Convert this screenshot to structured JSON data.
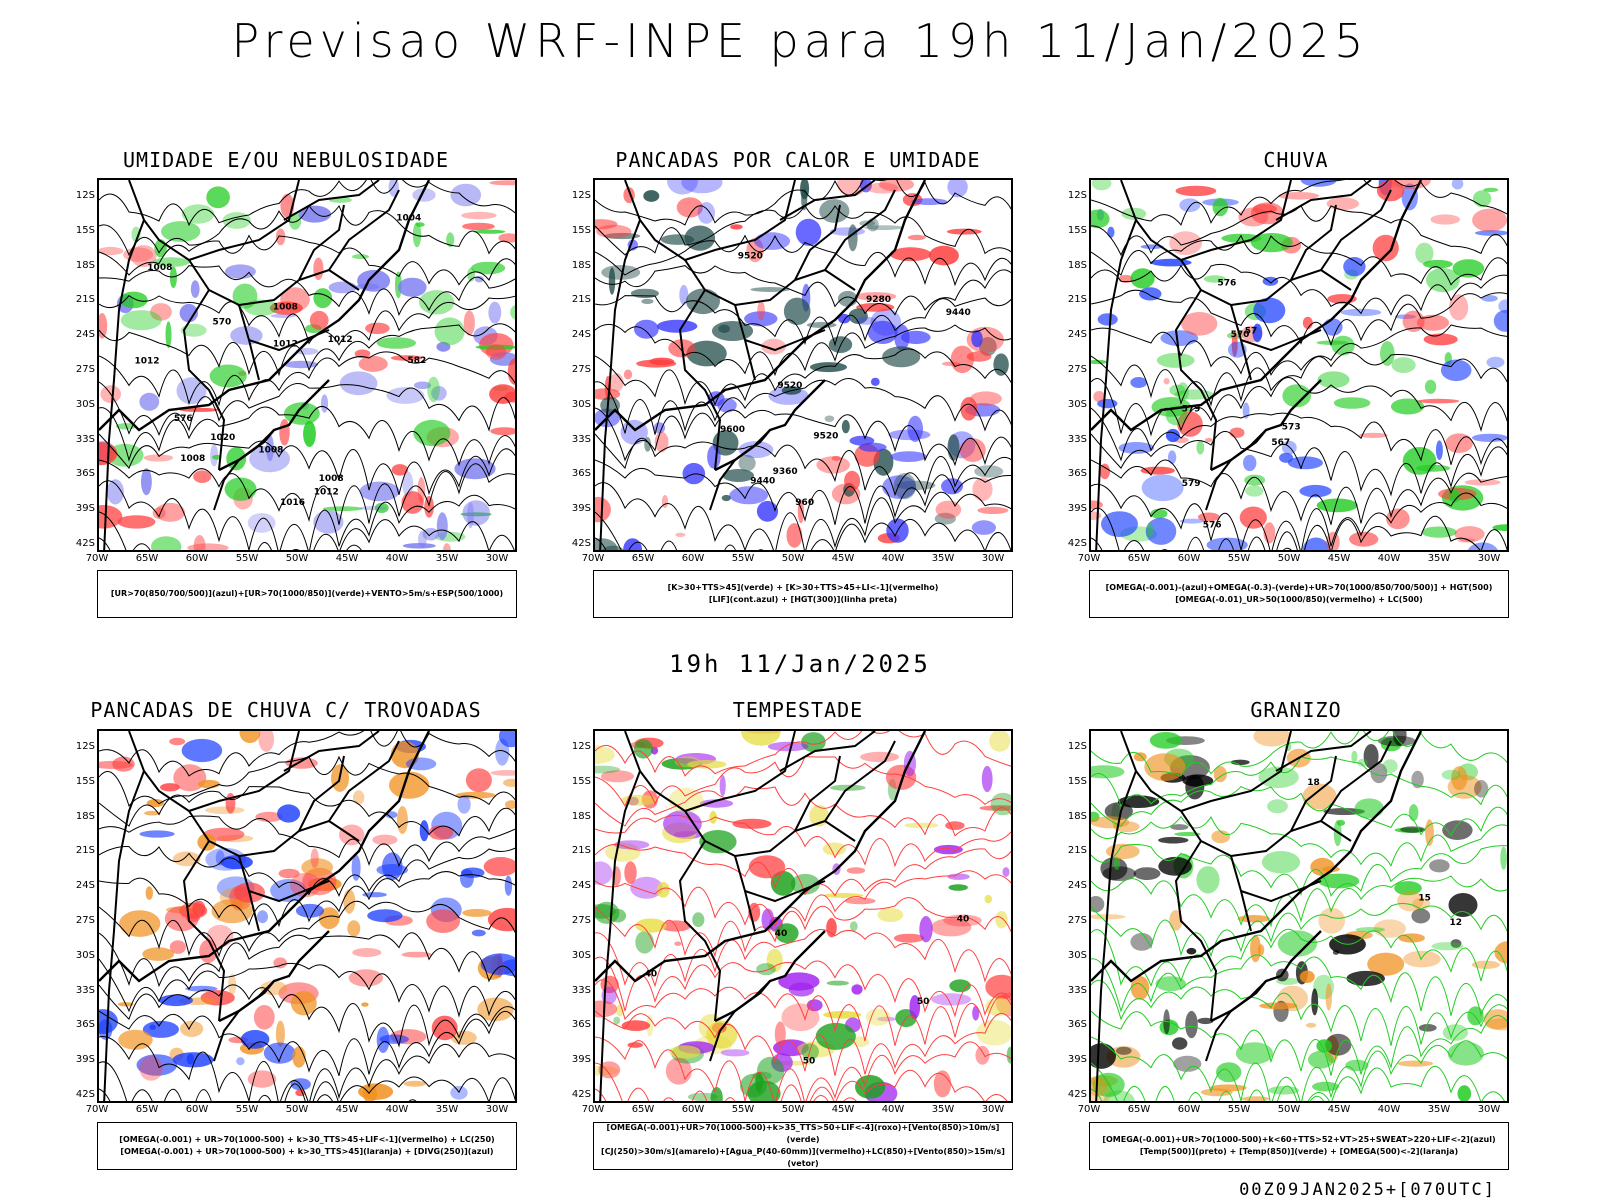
{
  "title": "Previsao WRF-INPE  para 19h 11/Jan/2025",
  "mid_time": "19h 11/Jan/2025",
  "run_stamp": "00Z09JAN2025+[070UTC]",
  "lat_labels": [
    "12S",
    "15S",
    "18S",
    "21S",
    "24S",
    "27S",
    "30S",
    "33S",
    "36S",
    "39S",
    "42S"
  ],
  "lon_labels": [
    "70W",
    "65W",
    "60W",
    "55W",
    "50W",
    "45W",
    "40W",
    "35W",
    "30W"
  ],
  "panels": [
    {
      "title": "UMIDADE E/OU NEBULOSIDADE",
      "legend": [
        "[UR>70(850/700/500)](azul)+[UR>70(1000/850)](verde)+VENTO>5m/s+ESP(500/1000)"
      ],
      "contour_labels": [
        "1008",
        "1008",
        "1012",
        "1004",
        "1016",
        "1008",
        "1012",
        "1008",
        "1012",
        "1008",
        "1012",
        "576",
        "582",
        "570",
        "1020"
      ],
      "colors": {
        "blue": "#7b7bf0",
        "green": "#22cc22",
        "red": "#ff4040"
      }
    },
    {
      "title": "PANCADAS POR CALOR E UMIDADE",
      "legend": [
        "[K>30+TTS>45](verde) + [K>30+TTS>45+LI<-1](vermelho)",
        "[LIF](cont.azul) + [HGT(300)](linha preta)"
      ],
      "contour_labels": [
        "9520",
        "9600",
        "9520",
        "9520",
        "9440",
        "9440",
        "9360",
        "9280",
        "960"
      ],
      "colors": {
        "dark": "#1f4a48",
        "red": "#ff3b3b",
        "blue": "#3a3aff"
      }
    },
    {
      "title": "CHUVA",
      "legend": [
        "[OMEGA(-0.001)-(azul)+OMEGA(-0.3)-(verde)+UR>70(1000/850/700/500)] + HGT(500)",
        "[OMEGA(-0.01)_UR>50(1000/850)(vermelho) + LC(500)"
      ],
      "contour_labels": [
        "576",
        "579",
        "573",
        "570",
        "567",
        "579",
        "576",
        "57"
      ],
      "colors": {
        "blue": "#1a3dff",
        "green": "#22cc22",
        "red": "#ff4040"
      }
    },
    {
      "title": "PANCADAS DE CHUVA C/ TROVOADAS",
      "legend": [
        "[OMEGA(-0.001) + UR>70(1000-500) + k>30_TTS>45+LIF<-1](vermelho) + LC(250)",
        "[OMEGA(-0.001) + UR>70(1000-500) + k>30_TTS>45](laranja) + [DIVG(250)](azul)"
      ],
      "contour_labels": [],
      "colors": {
        "red": "#ff4040",
        "orange": "#f0901e",
        "blue": "#1a3dff"
      }
    },
    {
      "title": "TEMPESTADE",
      "legend": [
        "[OMEGA(-0.001)+UR>70(1000-500)+k>35_TTS>50+LIF<-4](roxo)+[Vento(850)>10m/s](verde)",
        "[CJ(250)>30m/s](amarelo)+[Agua_P(40-60mm)](vermelho)+LC(850)+[Vento(850)>15m/s](vetor)"
      ],
      "contour_labels": [
        "40",
        "40",
        "50",
        "50",
        "40"
      ],
      "colors": {
        "red": "#ff4040",
        "yellow": "#e6dc3c",
        "green": "#1aa01a",
        "purple": "#a020f0"
      }
    },
    {
      "title": "GRANIZO",
      "legend": [
        "[OMEGA(-0.001)+UR>70(1000-500)+k<60+TTS>52+VT>25+SWEAT>220+LIF<-2](azul)",
        "[Temp(500)](preto) + [Temp(850)](verde) + [OMEGA(500)<-2](laranja)"
      ],
      "contour_labels": [
        "12",
        "15",
        "18"
      ],
      "colors": {
        "green": "#22cc22",
        "orange": "#f0901e",
        "black": "#000000"
      }
    }
  ]
}
